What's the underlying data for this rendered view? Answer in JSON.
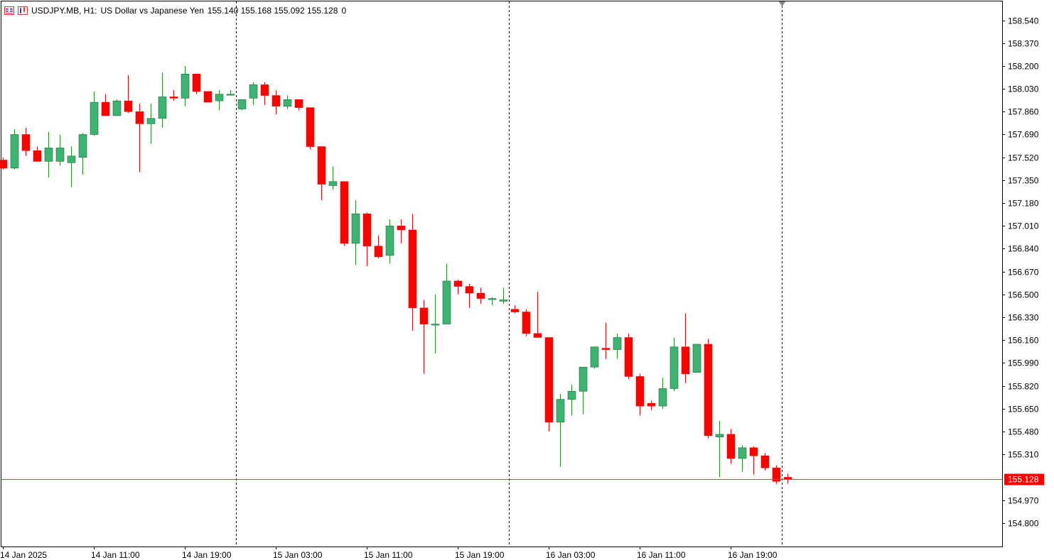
{
  "header": {
    "symbol_label": "USDJPY.MB, H1:",
    "description": "US Dollar vs Japanese Yen",
    "ohlc": "155.140 155.168 155.092 155.128",
    "volume": "0"
  },
  "colors": {
    "bull": "#3cb371",
    "bear": "#ff0000",
    "wick_bull": "#228b22",
    "wick_bear": "#d01818",
    "price_line": "#e04040",
    "price_label_bg": "#ff0000"
  },
  "chart_data": {
    "type": "candlestick",
    "symbol": "USDJPY.MB",
    "timeframe": "H1",
    "current_price": "155.128",
    "y_ticks": [
      "158.540",
      "158.370",
      "158.200",
      "158.030",
      "157.860",
      "157.690",
      "157.520",
      "157.350",
      "157.180",
      "157.010",
      "156.840",
      "156.670",
      "156.500",
      "156.330",
      "156.160",
      "155.990",
      "155.820",
      "155.650",
      "155.480",
      "155.310",
      "154.970",
      "154.800"
    ],
    "ylim": [
      154.68,
      158.64
    ],
    "x_labels": [
      {
        "index": 0,
        "text": "14 Jan 2025"
      },
      {
        "index": 8,
        "text": "14 Jan 11:00"
      },
      {
        "index": 16,
        "text": "14 Jan 19:00"
      },
      {
        "index": 24,
        "text": "15 Jan 03:00"
      },
      {
        "index": 32,
        "text": "15 Jan 11:00"
      },
      {
        "index": 40,
        "text": "15 Jan 19:00"
      },
      {
        "index": 48,
        "text": "16 Jan 03:00"
      },
      {
        "index": 56,
        "text": "16 Jan 11:00"
      },
      {
        "index": 64,
        "text": "16 Jan 19:00"
      }
    ],
    "separators": [
      20.5,
      44.5,
      68.5
    ],
    "candles": [
      [
        157.5,
        157.52,
        157.43,
        157.44
      ],
      [
        157.44,
        157.73,
        157.43,
        157.69
      ],
      [
        157.69,
        157.74,
        157.53,
        157.57
      ],
      [
        157.57,
        157.6,
        157.49,
        157.49
      ],
      [
        157.49,
        157.71,
        157.37,
        157.59
      ],
      [
        157.49,
        157.69,
        157.46,
        157.59
      ],
      [
        157.48,
        157.6,
        157.3,
        157.53
      ],
      [
        157.52,
        157.7,
        157.39,
        157.69
      ],
      [
        157.69,
        158.01,
        157.68,
        157.93
      ],
      [
        157.93,
        157.99,
        157.83,
        157.83
      ],
      [
        157.83,
        157.95,
        157.83,
        157.94
      ],
      [
        157.94,
        158.13,
        157.85,
        157.86
      ],
      [
        157.86,
        157.92,
        157.41,
        157.77
      ],
      [
        157.77,
        157.92,
        157.62,
        157.81
      ],
      [
        157.81,
        158.15,
        157.74,
        157.97
      ],
      [
        157.97,
        158.02,
        157.94,
        157.96
      ],
      [
        157.96,
        158.2,
        157.9,
        158.14
      ],
      [
        158.14,
        158.14,
        157.99,
        158.01
      ],
      [
        158.01,
        158.01,
        157.94,
        157.93
      ],
      [
        157.94,
        158.02,
        157.87,
        157.99
      ],
      [
        157.99,
        158.02,
        157.99,
        157.99
      ],
      [
        157.88,
        157.95,
        157.87,
        157.95
      ],
      [
        157.96,
        158.08,
        157.91,
        158.06
      ],
      [
        158.06,
        158.08,
        157.91,
        157.98
      ],
      [
        157.98,
        158.02,
        157.84,
        157.9
      ],
      [
        157.9,
        157.98,
        157.88,
        157.95
      ],
      [
        157.95,
        157.95,
        157.87,
        157.89
      ],
      [
        157.89,
        157.89,
        157.58,
        157.6
      ],
      [
        157.6,
        157.6,
        157.2,
        157.32
      ],
      [
        157.31,
        157.45,
        157.28,
        157.34
      ],
      [
        157.34,
        157.34,
        156.86,
        156.88
      ],
      [
        156.88,
        157.2,
        156.72,
        157.1
      ],
      [
        157.1,
        157.11,
        156.71,
        156.86
      ],
      [
        156.86,
        156.94,
        156.77,
        156.78
      ],
      [
        156.79,
        157.06,
        156.73,
        157.01
      ],
      [
        157.01,
        157.06,
        156.88,
        156.98
      ],
      [
        156.98,
        157.1,
        156.23,
        156.4
      ],
      [
        156.4,
        156.46,
        155.91,
        156.28
      ],
      [
        156.28,
        156.5,
        156.06,
        156.28
      ],
      [
        156.28,
        156.73,
        156.28,
        156.6
      ],
      [
        156.6,
        156.61,
        156.5,
        156.56
      ],
      [
        156.56,
        156.58,
        156.4,
        156.51
      ],
      [
        156.51,
        156.55,
        156.43,
        156.47
      ],
      [
        156.47,
        156.48,
        156.42,
        156.47
      ],
      [
        156.45,
        156.55,
        156.43,
        156.46
      ],
      [
        156.39,
        156.42,
        156.36,
        156.37
      ],
      [
        156.37,
        156.39,
        156.19,
        156.21
      ],
      [
        156.21,
        156.52,
        156.18,
        156.18
      ],
      [
        156.18,
        156.18,
        155.48,
        155.55
      ],
      [
        155.55,
        155.76,
        155.22,
        155.72
      ],
      [
        155.72,
        155.83,
        155.6,
        155.78
      ],
      [
        155.78,
        155.96,
        155.61,
        155.96
      ],
      [
        155.96,
        156.11,
        155.95,
        156.11
      ],
      [
        156.1,
        156.29,
        156.02,
        156.09
      ],
      [
        156.09,
        156.21,
        156.02,
        156.18
      ],
      [
        156.18,
        156.21,
        155.87,
        155.89
      ],
      [
        155.89,
        155.91,
        155.6,
        155.67
      ],
      [
        155.69,
        155.71,
        155.64,
        155.67
      ],
      [
        155.67,
        155.88,
        155.65,
        155.8
      ],
      [
        155.8,
        156.18,
        155.78,
        156.11
      ],
      [
        156.11,
        156.36,
        155.84,
        155.91
      ],
      [
        155.92,
        156.13,
        155.92,
        156.13
      ],
      [
        156.13,
        156.17,
        155.43,
        155.45
      ],
      [
        155.44,
        155.56,
        155.14,
        155.46
      ],
      [
        155.46,
        155.5,
        155.24,
        155.28
      ],
      [
        155.28,
        155.38,
        155.18,
        155.36
      ],
      [
        155.36,
        155.37,
        155.16,
        155.3
      ],
      [
        155.3,
        155.32,
        155.19,
        155.21
      ],
      [
        155.21,
        155.23,
        155.09,
        155.11
      ],
      [
        155.14,
        155.168,
        155.092,
        155.128
      ]
    ]
  }
}
